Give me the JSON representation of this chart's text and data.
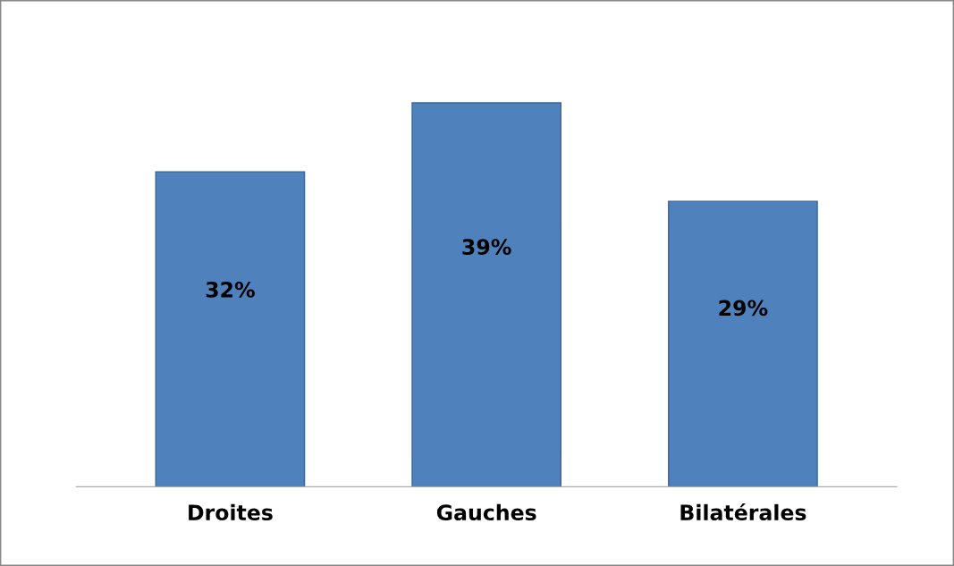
{
  "chart_data": {
    "type": "bar",
    "categories": [
      "Droites",
      "Gauches",
      "Bilatérales"
    ],
    "values": [
      32,
      39,
      29
    ],
    "value_labels": [
      "32%",
      "39%",
      "29%"
    ],
    "color": "#4f81bd",
    "grid": false,
    "legend": false
  }
}
